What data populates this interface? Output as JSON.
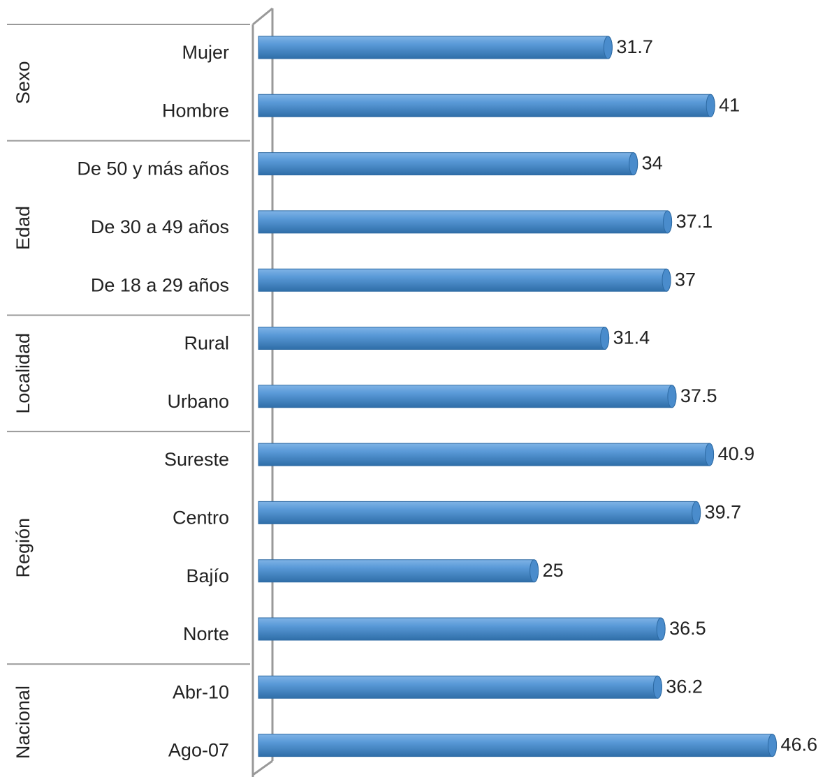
{
  "chart_data": {
    "type": "bar",
    "orientation": "horizontal",
    "color": "#4a8ccc",
    "xlim": [
      0,
      51
    ],
    "groups": [
      {
        "name": "Sexo",
        "categories": [
          "Mujer",
          "Hombre"
        ],
        "values": [
          31.7,
          41
        ]
      },
      {
        "name": "Edad",
        "categories": [
          "De 50 y más años",
          "De 30 a 49 años",
          "De 18 a 29 años"
        ],
        "values": [
          34,
          37.1,
          37
        ]
      },
      {
        "name": "Localidad",
        "categories": [
          "Rural",
          "Urbano"
        ],
        "values": [
          31.4,
          37.5
        ]
      },
      {
        "name": "Región",
        "categories": [
          "Sureste",
          "Centro",
          "Bajío",
          "Norte"
        ],
        "values": [
          40.9,
          39.7,
          25,
          36.5
        ]
      },
      {
        "name": "Nacional",
        "categories": [
          "Abr-10",
          "Ago-07"
        ],
        "values": [
          36.2,
          46.6
        ]
      }
    ]
  }
}
